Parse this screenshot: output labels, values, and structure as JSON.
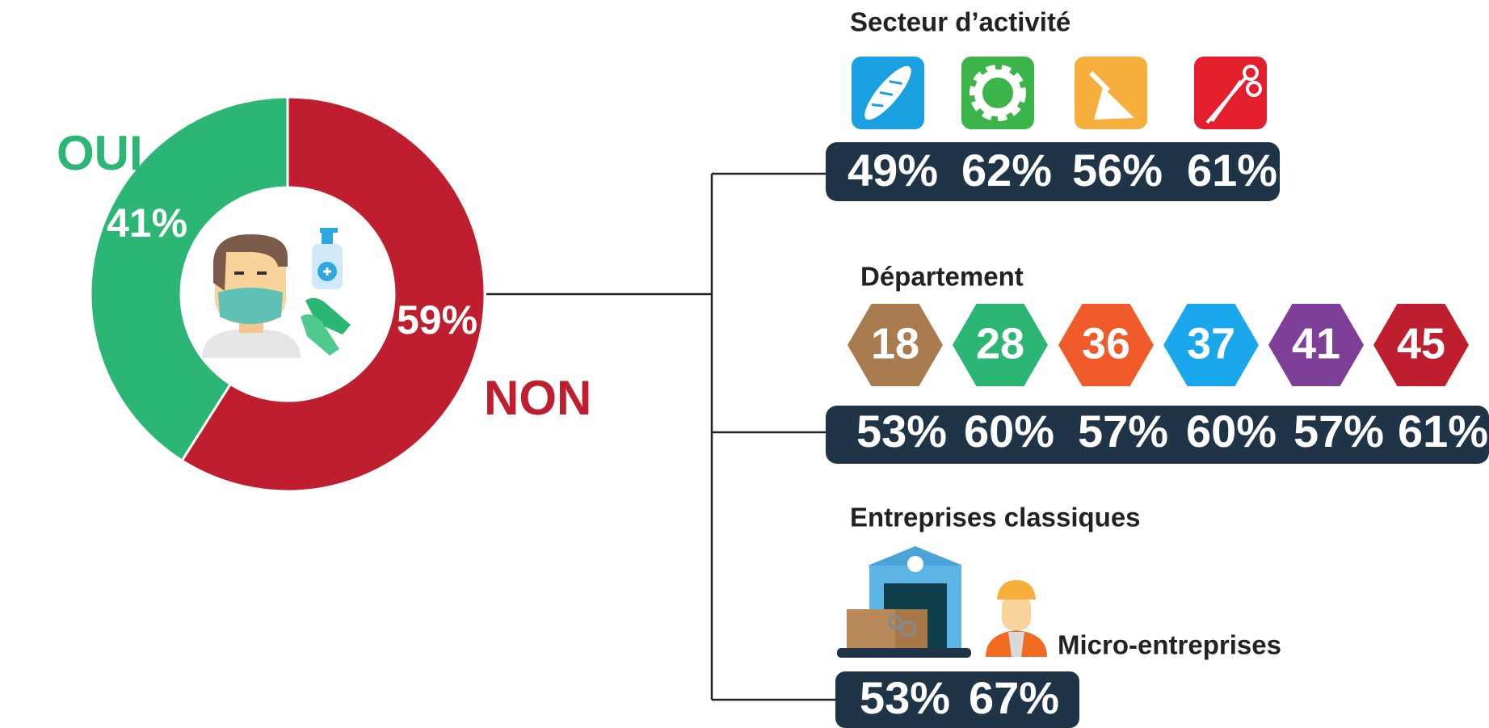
{
  "chart_data": {
    "type": "pie",
    "categories": [
      "OUI",
      "NON"
    ],
    "values": [
      41,
      59
    ],
    "value_labels": [
      "41%",
      "59%"
    ],
    "colors": [
      "#2bb673",
      "#be1e2d"
    ]
  },
  "secteur": {
    "title": "Secteur d’activité",
    "values": [
      "49%",
      "62%",
      "56%",
      "61%"
    ]
  },
  "departement": {
    "title": "Département",
    "codes": [
      "18",
      "28",
      "36",
      "37",
      "41",
      "45"
    ],
    "values": [
      "53%",
      "60%",
      "57%",
      "60%",
      "57%",
      "61%"
    ]
  },
  "entreprises": {
    "classiques": {
      "label": "Entreprises classiques",
      "value": "53%"
    },
    "micro": {
      "label": "Micro-entreprises",
      "value": "67%"
    }
  }
}
